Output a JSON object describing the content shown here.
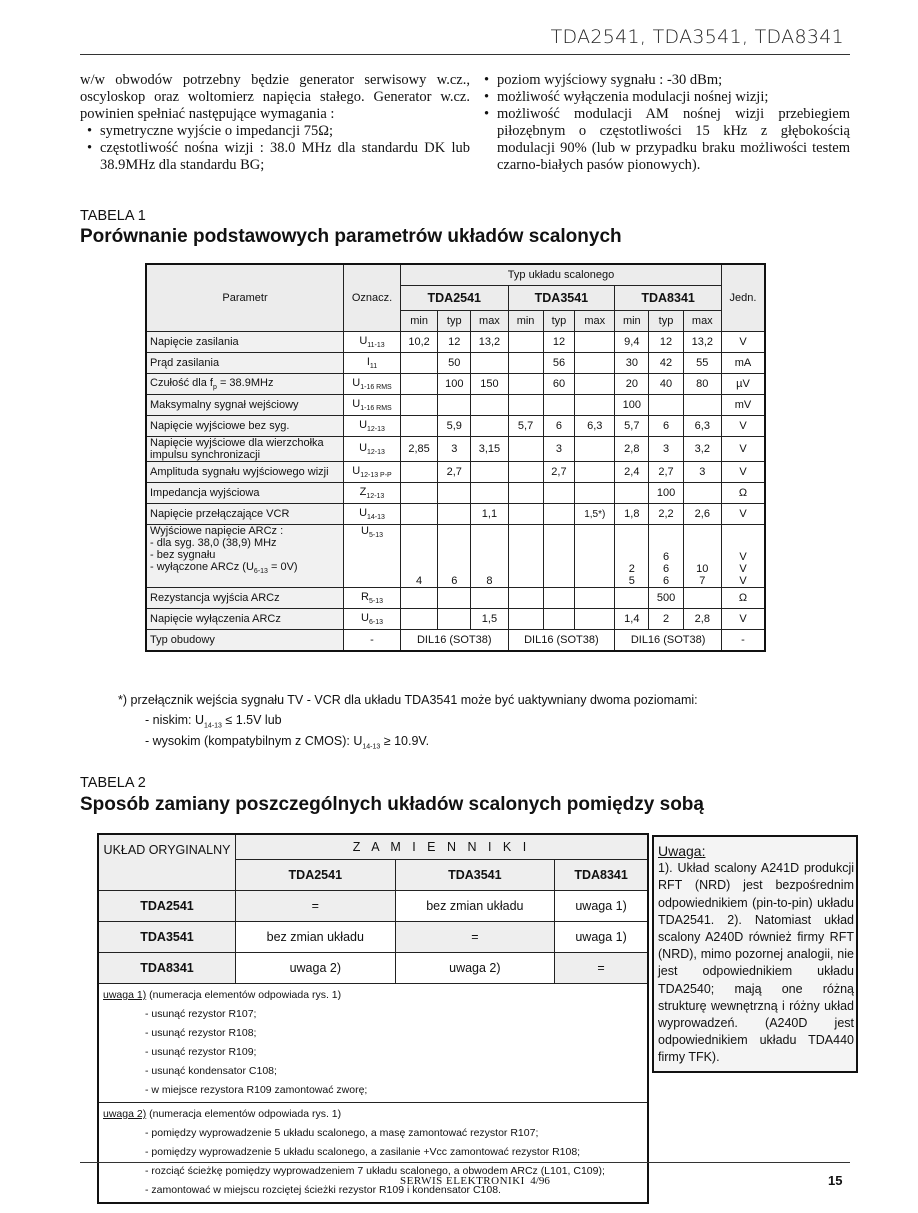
{
  "header": {
    "title": "TDA2541, TDA3541, TDA8341"
  },
  "intro": {
    "left_paragraph": "w/w obwodów potrzebny będzie generator serwisowy w.cz., oscyloskop oraz woltomierz napięcia stałego. Generator w.cz. powinien spełniać następujące wymagania :",
    "left_bullets": [
      "symetryczne wyjście o impedancji 75Ω;",
      "częstotliwość nośna wizji : 38.0 MHz dla standardu DK lub 38.9MHz dla standardu BG;"
    ],
    "right_bullets": [
      "poziom wyjściowy sygnału : -30 dBm;",
      "możliwość wyłączenia modulacji nośnej wizji;",
      "możliwość modulacji AM nośnej wizji przebiegiem piłozębnym o częstotliwości 15 kHz z głębokością modulacji 90% (lub w przypadku braku możliwości testem czarno-białych pasów pionowych)."
    ]
  },
  "table1": {
    "label": "TABELA 1",
    "title": "Porównanie podstawowych parametrów układów scalonych",
    "headers": {
      "param": "Parametr",
      "symbol": "Oznacz.",
      "group": "Typ układu scalonego",
      "chips": [
        "TDA2541",
        "TDA3541",
        "TDA8341"
      ],
      "sub": [
        "min",
        "typ",
        "max"
      ],
      "unit": "Jedn."
    },
    "rows": [
      {
        "param": [
          "Napięcie zasilania"
        ],
        "sym": "U",
        "sub": "11-13",
        "vals": [
          "10,2",
          "12",
          "13,2",
          "",
          "12",
          "",
          "9,4",
          "12",
          "13,2"
        ],
        "unit": "V"
      },
      {
        "param": [
          "Prąd zasilania"
        ],
        "sym": "I",
        "sub": "11",
        "vals": [
          "",
          "50",
          "",
          "",
          "56",
          "",
          "30",
          "42",
          "55"
        ],
        "unit": "mA"
      },
      {
        "param": [
          "Czułość dla fp = 38.9MHz"
        ],
        "sym": "U",
        "sub": "1-16 RMS",
        "vals": [
          "",
          "100",
          "150",
          "",
          "60",
          "",
          "20",
          "40",
          "80"
        ],
        "unit": "µV"
      },
      {
        "param": [
          "Maksymalny sygnał wejściowy"
        ],
        "sym": "U",
        "sub": "1-16 RMS",
        "vals": [
          "",
          "",
          "",
          "",
          "",
          "",
          "100",
          "",
          ""
        ],
        "unit": "mV"
      },
      {
        "param": [
          "Napięcie wyjściowe bez syg."
        ],
        "sym": "U",
        "sub": "12-13",
        "vals": [
          "",
          "5,9",
          "",
          "5,7",
          "6",
          "6,3",
          "5,7",
          "6",
          "6,3"
        ],
        "unit": "V"
      },
      {
        "param": [
          "Napięcie wyjściowe dla wierzchołka",
          "impulsu synchronizacji"
        ],
        "sym": "U",
        "sub": "12-13",
        "vals": [
          "2,85",
          "3",
          "3,15",
          "",
          "3",
          "",
          "2,8",
          "3",
          "3,2"
        ],
        "unit": "V"
      },
      {
        "param": [
          "Amplituda sygnału wyjściowego wizji"
        ],
        "sym": "U",
        "sub": "12-13 P-P",
        "vals": [
          "",
          "2,7",
          "",
          "",
          "2,7",
          "",
          "2,4",
          "2,7",
          "3"
        ],
        "unit": "V"
      },
      {
        "param": [
          "Impedancja wyjściowa"
        ],
        "sym": "Z",
        "sub": "12-13",
        "vals": [
          "",
          "",
          "",
          "",
          "",
          "",
          "",
          "100",
          ""
        ],
        "unit": "Ω"
      },
      {
        "param": [
          "Napięcie przełączające VCR"
        ],
        "sym": "U",
        "sub": "14-13",
        "vals": [
          "",
          "",
          "1,1",
          "",
          "",
          "1,5*)",
          "1,8",
          "2,2",
          "2,6"
        ],
        "unit": "V"
      },
      {
        "param": [
          "Wyjściowe napięcie ARCz :",
          "- dla syg. 38,0 (38,9) MHz",
          "- bez sygnału",
          "- wyłączone ARCz (U6-13 = 0V)"
        ],
        "sym": "U",
        "sub": "5-13",
        "vals": [
          "4",
          "6",
          "8",
          "",
          "",
          "",
          "\n\n2\n5",
          "6\n6\n6",
          "\n10\n7"
        ],
        "unit": "V\nV\nV"
      },
      {
        "param": [
          "Rezystancja wyjścia ARCz"
        ],
        "sym": "R",
        "sub": "5-13",
        "vals": [
          "",
          "",
          "",
          "",
          "",
          "",
          "",
          "500",
          ""
        ],
        "unit": "Ω"
      },
      {
        "param": [
          "Napięcie wyłączenia ARCz"
        ],
        "sym": "U",
        "sub": "6-13",
        "vals": [
          "",
          "",
          "1,5",
          "",
          "",
          "",
          "1,4",
          "2",
          "2,8"
        ],
        "unit": "V"
      }
    ],
    "package_row": {
      "param": "Typ obudowy",
      "sym": "-",
      "vals": [
        "DIL16 (SOT38)",
        "DIL16 (SOT38)",
        "DIL16 (SOT38)"
      ],
      "unit": "-"
    }
  },
  "footnote": {
    "text": "*) przełącznik wejścia sygnału TV - VCR  dla układu TDA3541 może być uaktywniany dwoma poziomami:",
    "low": "- niskim: U14-13 ≤ 1.5V lub",
    "high": "- wysokim (kompatybilnym z CMOS): U14-13 ≥ 10.9V."
  },
  "table2": {
    "label": "TABELA 2",
    "title": "Sposób zamiany poszczególnych układów scalonych pomiędzy sobą",
    "header_orig": "UKŁAD ORYGINALNY",
    "header_group": "Z A M I E N N I K I",
    "chips": [
      "TDA2541",
      "TDA3541",
      "TDA8341"
    ],
    "rows": [
      {
        "orig": "TDA2541",
        "vals": [
          "=",
          "bez zmian układu",
          "uwaga 1)"
        ]
      },
      {
        "orig": "TDA3541",
        "vals": [
          "bez zmian układu",
          "=",
          "uwaga 1)"
        ]
      },
      {
        "orig": "TDA8341",
        "vals": [
          "uwaga 2)",
          "uwaga 2)",
          "="
        ]
      }
    ],
    "notes": [
      {
        "label": "uwaga 1)",
        "intro": "(numeracja elementów odpowiada rys. 1)",
        "items": [
          "- usunąć rezystor R107;",
          "- usunąć rezystor R108;",
          "- usunąć rezystor R109;",
          "- usunąć kondensator C108;",
          "- w miejsce rezystora R109 zamontować zworę;"
        ]
      },
      {
        "label": "uwaga 2)",
        "intro": "(numeracja elementów odpowiada rys. 1)",
        "items": [
          "- pomiędzy wyprowadzenie 5 układu scalonego, a masę zamontować rezystor R107;",
          "- pomiędzy wyprowadzenie 5 układu scalonego, a zasilanie +Vcc zamontować rezystor R108;",
          "- rozciąć ścieżkę pomiędzy wyprowadzeniem 7 układu scalonego, a obwodem ARCz (L101, C109);",
          "- zamontować w miejscu rozciętej ścieżki rezystor R109 i kondensator C108."
        ]
      }
    ]
  },
  "side_note": {
    "title": "Uwaga:",
    "text": "1). Układ scalony A241D produkcji RFT (NRD) jest bezpośrednim odpowiednikiem (pin-to-pin) układu TDA2541. 2). Natomiast układ scalony A240D również firmy RFT (NRD), mimo pozornej analogii, nie jest odpowiednikiem układu TDA2540; mają one różną strukturę wewnętrzną i różny układ wyprowadzeń. (A240D jest odpowiednikiem układu TDA440 firmy TFK)."
  },
  "footer": {
    "magazine": "SERWIS ELEKTRONIKI",
    "issue": "4/96",
    "page": "15"
  }
}
